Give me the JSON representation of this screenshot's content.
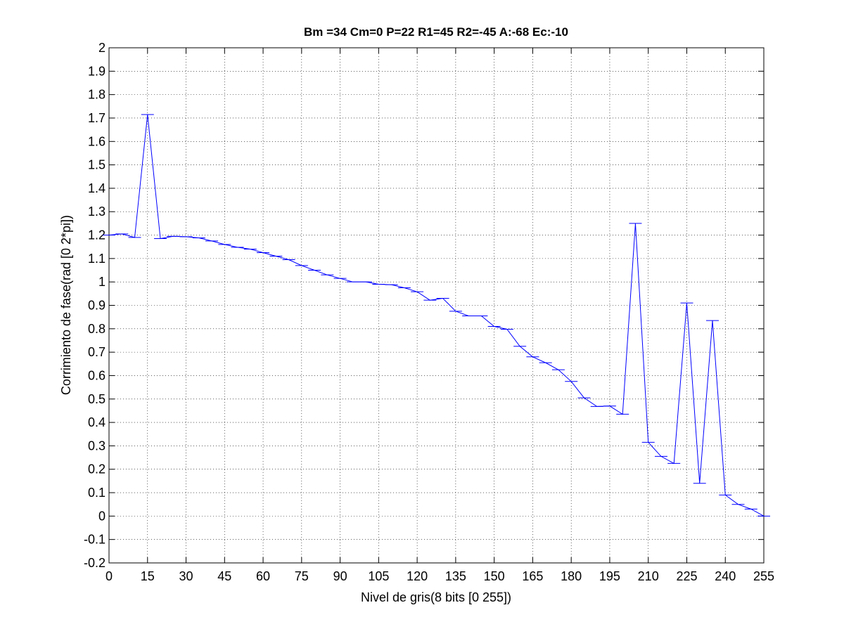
{
  "chart_data": {
    "type": "line",
    "title": "Bm =34  Cm=0  P=22  R1=45  R2=-45  A:-68  Ec:-10",
    "xlabel": "Nivel de gris(8 bits [0 255])",
    "ylabel": "Corrimiento de fase(rad [0 2*pi])",
    "xlim": [
      0,
      255
    ],
    "ylim": [
      -0.2,
      2
    ],
    "xticks": [
      0,
      15,
      30,
      45,
      60,
      75,
      90,
      105,
      120,
      135,
      150,
      165,
      180,
      195,
      210,
      225,
      240,
      255
    ],
    "yticks": [
      -0.2,
      -0.1,
      0,
      0.1,
      0.2,
      0.3,
      0.4,
      0.5,
      0.6,
      0.7,
      0.8,
      0.9,
      1,
      1.1,
      1.2,
      1.3,
      1.4,
      1.5,
      1.6,
      1.7,
      1.8,
      1.9,
      2
    ],
    "ytick_labels": [
      "-0.2",
      "-0.1",
      "0",
      "0.1",
      "0.2",
      "0.3",
      "0.4",
      "0.5",
      "0.6",
      "0.7",
      "0.8",
      "0.9",
      "1",
      "1.1",
      "1.2",
      "1.3",
      "1.4",
      "1.5",
      "1.6",
      "1.7",
      "1.8",
      "1.9",
      "2"
    ],
    "grid": true,
    "line_color": "#0000ff",
    "series": [
      {
        "x": [
          0,
          5,
          10,
          15,
          20,
          25,
          30,
          35,
          40,
          45,
          50,
          55,
          60,
          65,
          70,
          75,
          80,
          85,
          90,
          95,
          100,
          105,
          110,
          115,
          120,
          125,
          130,
          135,
          140,
          145,
          150,
          155,
          160,
          165,
          170,
          175,
          180,
          185,
          190,
          195,
          200,
          205,
          210,
          215,
          220,
          225,
          230,
          235,
          240,
          245,
          250,
          255
        ],
        "y": [
          1.2,
          1.205,
          1.19,
          1.715,
          1.185,
          1.195,
          1.193,
          1.188,
          1.175,
          1.16,
          1.148,
          1.14,
          1.125,
          1.11,
          1.095,
          1.07,
          1.05,
          1.03,
          1.015,
          1.0,
          1.0,
          0.99,
          0.988,
          0.975,
          0.958,
          0.922,
          0.93,
          0.875,
          0.855,
          0.855,
          0.81,
          0.798,
          0.725,
          0.68,
          0.655,
          0.625,
          0.575,
          0.505,
          0.468,
          0.47,
          0.435,
          1.25,
          0.315,
          0.255,
          0.225,
          0.91,
          0.14,
          0.835,
          0.09,
          0.05,
          0.03,
          0.0
        ]
      }
    ]
  }
}
